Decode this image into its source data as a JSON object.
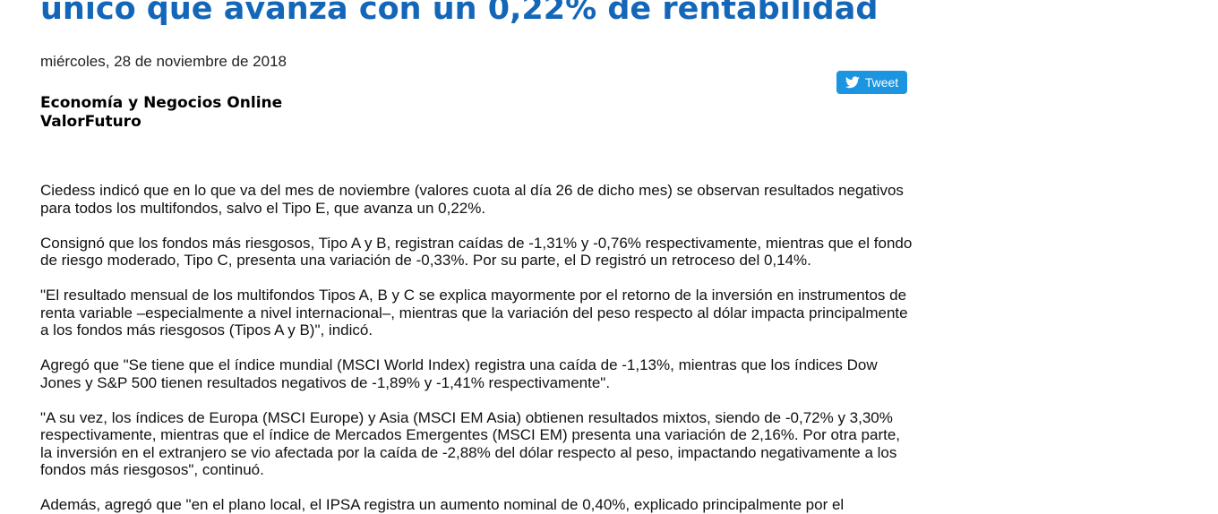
{
  "article": {
    "headline": "único que avanza con un 0,22% de rentabilidad",
    "date": "miércoles, 28 de noviembre de 2018",
    "section": "Economía y Negocios Online",
    "source": "ValorFuturo",
    "paragraphs": [
      "Ciedess indicó que en lo que va del mes de noviembre (valores cuota al día 26 de dicho mes) se observan resultados negativos para todos los multifondos, salvo el Tipo E, que avanza un 0,22%.",
      "Consignó que los fondos más riesgosos, Tipo A y B, registran caídas de -1,31% y -0,76% respectivamente, mientras que el fondo de riesgo moderado, Tipo C, presenta una variación de -0,33%. Por su parte, el D registró un retroceso del 0,14%.",
      "\"El resultado mensual de los multifondos Tipos A, B y C se explica mayormente por el retorno de la inversión en instrumentos de renta variable –especialmente a nivel internacional–, mientras que la variación del peso respecto al dólar impacta principalmente a los fondos más riesgosos (Tipos A y B)\", indicó.",
      "Agregó que \"Se tiene que el índice mundial (MSCI World Index) registra una caída de -1,13%, mientras que los índices Dow Jones y S&P 500 tienen resultados negativos de -1,89% y -1,41% respectivamente\".",
      "\"A su vez, los índices de Europa (MSCI Europe) y Asia (MSCI EM Asia) obtienen resultados mixtos, siendo de -0,72% y 3,30% respectivamente, mientras que el índice de Mercados Emergentes (MSCI EM) presenta una variación de 2,16%. Por otra parte, la inversión en el extranjero se vio afectada por la caída de -2,88% del dólar respecto al peso, impactando negativamente a los fondos más riesgosos\", continuó.",
      "Además, agregó que \"en el plano local, el IPSA registra un aumento nominal de 0,40%, explicado principalmente por el"
    ]
  },
  "share": {
    "tweet_label": "Tweet",
    "icon": "twitter-bird-icon",
    "color": "#1b95e0"
  },
  "colors": {
    "headline": "#1366b8",
    "text": "#111111"
  }
}
